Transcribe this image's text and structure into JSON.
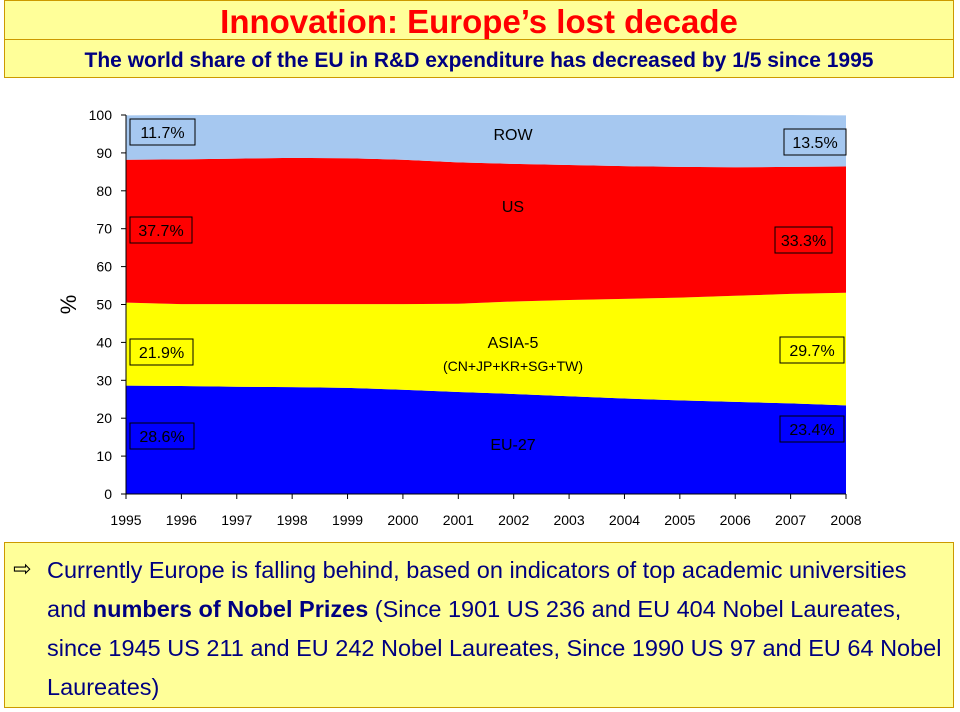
{
  "header": {
    "title": "Innovation: Europe’s lost decade",
    "subtitle": "The world share of the EU in R&D expenditure has decreased by 1/5 since 1995"
  },
  "chart_data": {
    "type": "area",
    "stacked": true,
    "x": [
      1995,
      1996,
      1997,
      1998,
      1999,
      2000,
      2001,
      2002,
      2003,
      2004,
      2005,
      2006,
      2007,
      2008
    ],
    "ylabel": "%",
    "xlabel": "",
    "ylim": [
      0,
      100
    ],
    "yticks": [
      0,
      10,
      20,
      30,
      40,
      50,
      60,
      70,
      80,
      90,
      100
    ],
    "grid": false,
    "series": [
      {
        "name": "EU-27",
        "color": "#0000ff",
        "values": [
          28.6,
          28.5,
          28.3,
          28.2,
          28.0,
          27.5,
          26.9,
          26.4,
          25.8,
          25.2,
          24.7,
          24.3,
          23.9,
          23.4
        ]
      },
      {
        "name": "ASIA-5",
        "sublabel": "(CN+JP+KR+SG+TW)",
        "color": "#ffff00",
        "values": [
          21.9,
          21.6,
          21.8,
          21.9,
          22.1,
          22.6,
          23.3,
          24.4,
          25.4,
          26.3,
          27.1,
          28.0,
          28.9,
          29.7
        ]
      },
      {
        "name": "US",
        "color": "#ff0000",
        "values": [
          37.7,
          38.2,
          38.4,
          38.6,
          38.5,
          38.1,
          37.3,
          36.3,
          35.6,
          35.0,
          34.5,
          33.9,
          33.5,
          33.3
        ]
      },
      {
        "name": "ROW",
        "color": "#a6c8f0",
        "values": [
          11.7,
          11.7,
          11.5,
          11.3,
          11.4,
          11.8,
          12.5,
          12.9,
          13.2,
          13.5,
          13.7,
          13.8,
          13.7,
          13.5
        ]
      }
    ],
    "annotations_1995": [
      "11.7%",
      "37.7%",
      "21.9%",
      "28.6%"
    ],
    "annotations_2008": [
      "13.5%",
      "33.3%",
      "29.7%",
      "23.4%"
    ]
  },
  "footer": {
    "bullet_icon": "arrow-right-outline-icon",
    "text_before": "Currently Europe is falling behind, based on indicators of top academic universities and ",
    "text_bold": "numbers of Nobel Prizes",
    "text_after": " (Since 1901 US 236 and EU 404 Nobel Laureates, since 1945 US 211 and EU 242 Nobel Laureates, Since 1990 US 97 and EU 64 Nobel Laureates)"
  }
}
